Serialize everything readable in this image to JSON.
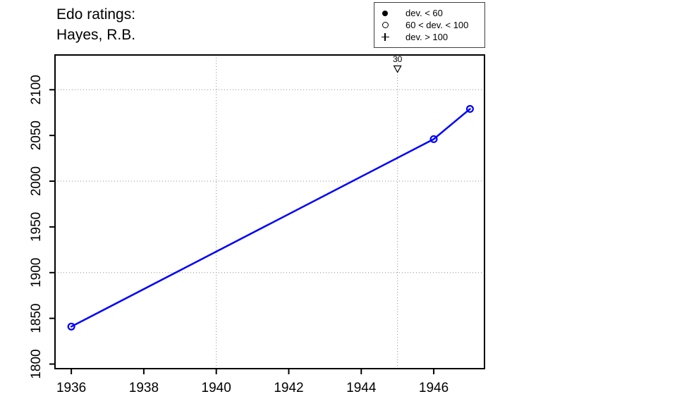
{
  "title": {
    "line1": "Edo ratings:",
    "line2": "Hayes, R.B."
  },
  "legend": {
    "items": [
      {
        "symbol": "filled-circle",
        "label": "dev. < 60"
      },
      {
        "symbol": "open-circle",
        "label": "60 < dev. < 100"
      },
      {
        "symbol": "plus",
        "label": "dev. > 100"
      }
    ]
  },
  "chart_data": {
    "type": "line",
    "title": "Edo ratings: Hayes, R.B.",
    "xlabel": "",
    "ylabel": "",
    "x_axis": {
      "range": [
        1935.55,
        1947.4
      ],
      "ticks": [
        1936,
        1938,
        1940,
        1942,
        1944,
        1946
      ]
    },
    "y_axis": {
      "range": [
        1795,
        2138
      ],
      "ticks": [
        1800,
        1850,
        1900,
        1950,
        2000,
        2050,
        2100
      ]
    },
    "grid": {
      "x_lines": [
        1940,
        1945
      ],
      "y_lines": [
        1900,
        2000,
        2100
      ],
      "color": "#8c8c8c",
      "style": "dotted"
    },
    "series": [
      {
        "name": "Hayes, R.B.",
        "color": "#0000ff",
        "marker": "open-circle",
        "points": [
          {
            "x": 1936,
            "y": 1841
          },
          {
            "x": 1946,
            "y": 2046
          },
          {
            "x": 1947,
            "y": 2079
          }
        ]
      }
    ],
    "annotations": [
      {
        "type": "triangle-down-open",
        "x": 1945,
        "label": "30"
      }
    ],
    "legend_position": "top-right"
  },
  "colors": {
    "line": "#0000ff",
    "axis": "#000000",
    "grid": "#8c8c8c",
    "background": "#ffffff"
  }
}
